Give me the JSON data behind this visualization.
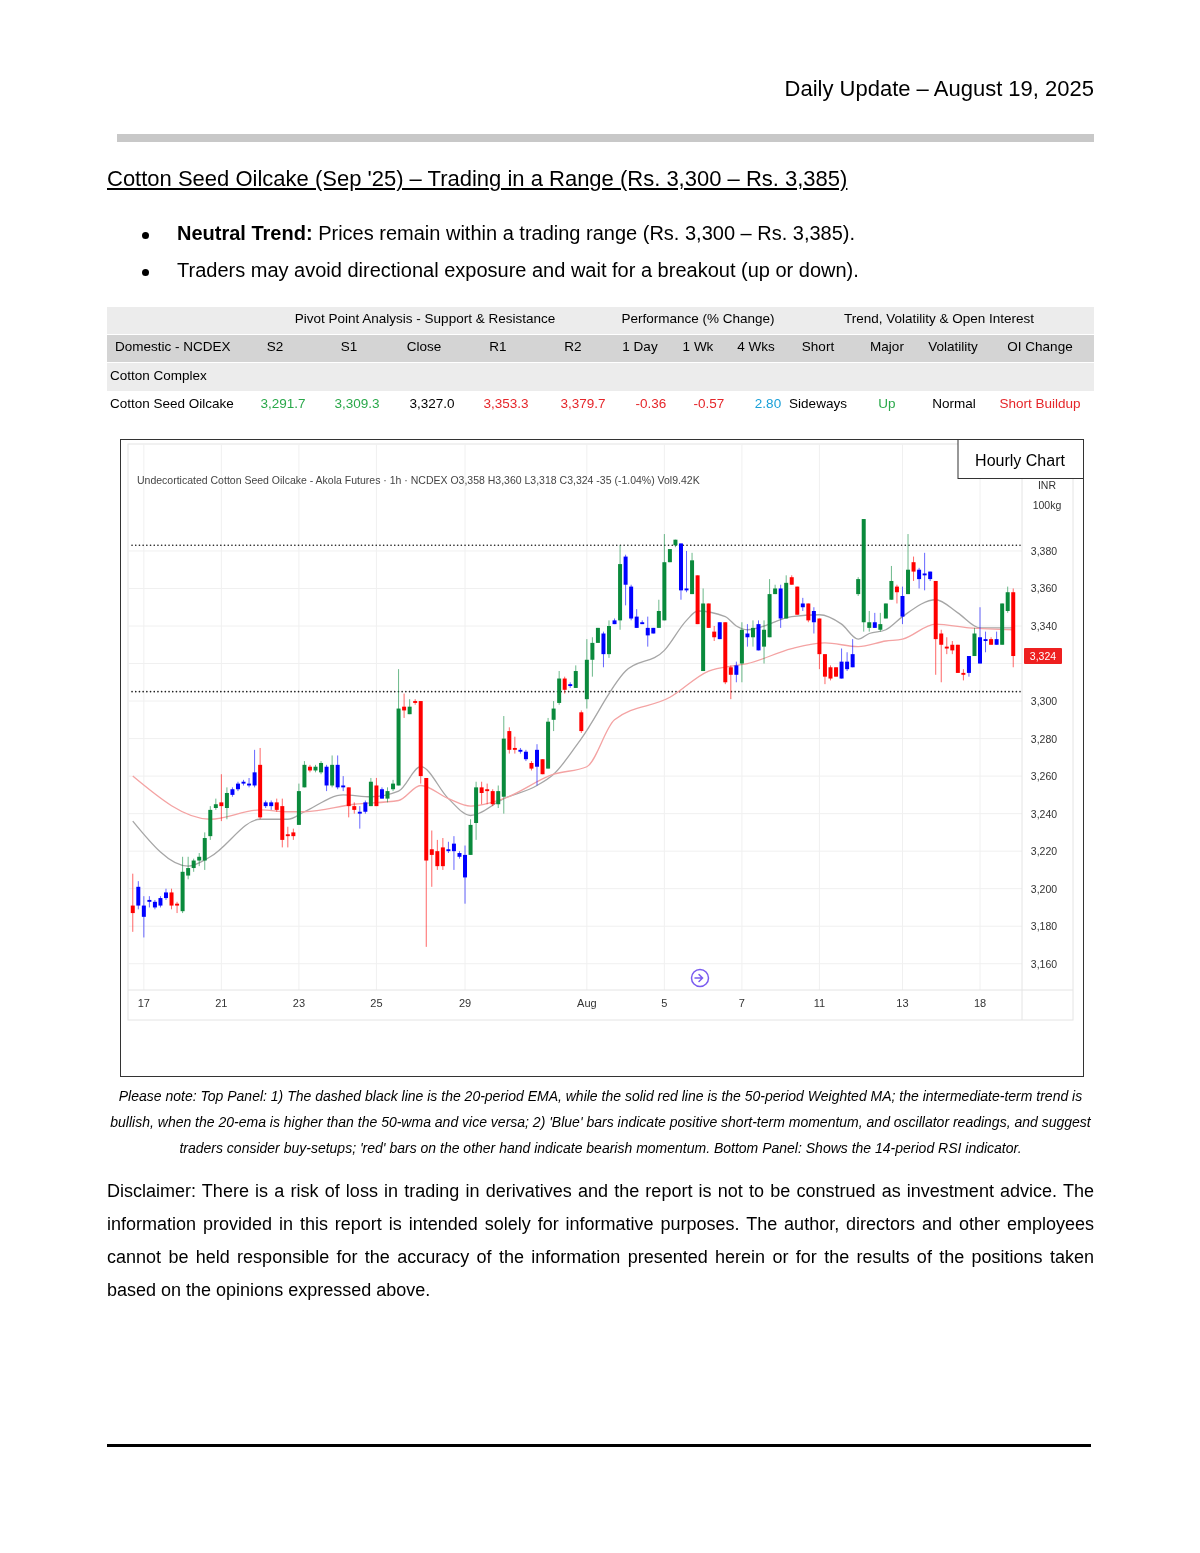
{
  "chart_data": {
    "type": "candlestick",
    "title": "Cotton Seed Oilcake (Sep '25) – Trading in a Range (Rs. 3,300 – Rs. 3,385)",
    "subtitle": "Undecorticated Cotton Seed Oilcake - Akola Futures · 1h · NCDEX  O3,358  H3,360  L3,318  C3,324  -35 (-1.04%)  Vol9.42K",
    "ylabel": "INR 100kg",
    "categories": [
      null,
      null,
      "17",
      null,
      null,
      null,
      null,
      null,
      null,
      null,
      null,
      null,
      null,
      null,
      null,
      null,
      "21",
      null,
      null,
      null,
      null,
      null,
      null,
      null,
      null,
      null,
      null,
      null,
      null,
      null,
      "23",
      null,
      null,
      null,
      null,
      null,
      null,
      null,
      null,
      null,
      null,
      null,
      null,
      null,
      "25",
      null,
      null,
      null,
      null,
      null,
      null,
      null,
      null,
      null,
      null,
      null,
      null,
      null,
      null,
      null,
      "29",
      null,
      null,
      null,
      null,
      null,
      null,
      null,
      null,
      null,
      null,
      null,
      null,
      null,
      null,
      null,
      null,
      null,
      null,
      null,
      null,
      null,
      "Aug",
      null,
      null,
      null,
      null,
      null,
      null,
      null,
      null,
      null,
      null,
      null,
      null,
      null,
      "5",
      null,
      null,
      null,
      null,
      null,
      null,
      null,
      null,
      null,
      null,
      null,
      null,
      null,
      "7",
      null,
      null,
      null,
      null,
      null,
      null,
      null,
      null,
      null,
      null,
      null,
      null,
      null,
      "11",
      null,
      null,
      null,
      null,
      null,
      null,
      null,
      null,
      null,
      null,
      null,
      null,
      null,
      null,
      "13",
      null,
      null,
      null,
      null,
      null,
      null,
      null,
      null,
      null,
      null,
      null,
      null,
      null,
      "18",
      null,
      null,
      null,
      null,
      null,
      null
    ],
    "ohlc": [
      [
        3191,
        3208,
        3177,
        3187
      ],
      [
        3201,
        3204,
        3189,
        3191
      ],
      [
        3191,
        3196,
        3174,
        3185
      ],
      [
        3194,
        3196,
        3190,
        3193
      ],
      [
        3193,
        3194,
        3189,
        3190
      ],
      [
        3195,
        3196,
        3190,
        3191
      ],
      [
        3198,
        3200,
        3194,
        3195
      ],
      [
        3198,
        3200,
        3189,
        3191
      ],
      [
        3192,
        3193,
        3187,
        3191
      ],
      [
        3188,
        3217,
        3187,
        3209
      ],
      [
        3207,
        3217,
        3205,
        3211
      ],
      [
        3211,
        3216,
        3209,
        3215
      ],
      [
        3215,
        3219,
        3212,
        3217
      ],
      [
        3215,
        3230,
        3210,
        3227
      ],
      [
        3228,
        3244,
        3226,
        3242
      ],
      [
        3243,
        3248,
        3242,
        3245
      ],
      [
        3246,
        3261,
        3236,
        3244
      ],
      [
        3243,
        3254,
        3237,
        3251
      ],
      [
        3253,
        3254,
        3249,
        3250
      ],
      [
        3256,
        3257,
        3252,
        3253
      ],
      [
        3257,
        3258,
        3255,
        3256
      ],
      [
        3256,
        3259,
        3254,
        3255
      ],
      [
        3262,
        3274,
        3254,
        3255
      ],
      [
        3266,
        3275,
        3237,
        3238
      ],
      [
        3246,
        3247,
        3243,
        3244
      ],
      [
        3246,
        3247,
        3242,
        3244
      ],
      [
        3246,
        3248,
        3241,
        3242
      ],
      [
        3244,
        3248,
        3222,
        3226
      ],
      [
        3229,
        3233,
        3222,
        3228
      ],
      [
        3230,
        3232,
        3226,
        3228
      ],
      [
        3234,
        3256,
        3234,
        3252
      ],
      [
        3254,
        3268,
        3254,
        3266
      ],
      [
        3265,
        3266,
        3262,
        3263
      ],
      [
        3263,
        3266,
        3262,
        3265
      ],
      [
        3262,
        3268,
        3261,
        3267
      ],
      [
        3265,
        3266,
        3252,
        3255
      ],
      [
        3255,
        3271,
        3254,
        3266
      ],
      [
        3266,
        3271,
        3253,
        3254
      ],
      [
        3255,
        3260,
        3252,
        3254
      ],
      [
        3254,
        3254,
        3238,
        3244
      ],
      [
        3244,
        3246,
        3240,
        3242
      ],
      [
        3241,
        3244,
        3232,
        3240
      ],
      [
        3246,
        3247,
        3240,
        3241
      ],
      [
        3244,
        3259,
        3244,
        3257
      ],
      [
        3255,
        3259,
        3244,
        3244
      ],
      [
        3253,
        3254,
        3248,
        3248
      ],
      [
        3248,
        3254,
        3246,
        3252
      ],
      [
        3253,
        3258,
        3252,
        3256
      ],
      [
        3255,
        3317,
        3255,
        3296
      ],
      [
        3297,
        3304,
        3291,
        3295
      ],
      [
        3293,
        3301,
        3293,
        3297
      ],
      [
        3300,
        3301,
        3298,
        3299
      ],
      [
        3300,
        3300,
        3256,
        3260
      ],
      [
        3259,
        3259,
        3169,
        3215
      ],
      [
        3221,
        3231,
        3201,
        3218
      ],
      [
        3220,
        3226,
        3210,
        3212
      ],
      [
        3222,
        3227,
        3210,
        3212
      ],
      [
        3221,
        3225,
        3219,
        3220
      ],
      [
        3224,
        3228,
        3210,
        3220
      ],
      [
        3219,
        3220,
        3216,
        3217
      ],
      [
        3218,
        3223,
        3192,
        3206
      ],
      [
        3218,
        3237,
        3218,
        3234
      ],
      [
        3235,
        3257,
        3226,
        3254
      ],
      [
        3254,
        3257,
        3245,
        3251
      ],
      [
        3253,
        3256,
        3245,
        3252
      ],
      [
        3252,
        3253,
        3244,
        3245
      ],
      [
        3245,
        3255,
        3243,
        3252
      ],
      [
        3249,
        3292,
        3240,
        3280
      ],
      [
        3284,
        3286,
        3272,
        3274
      ],
      [
        3275,
        3281,
        3272,
        3274
      ],
      [
        3274,
        3275,
        3272,
        3273
      ],
      [
        3273,
        3274,
        3268,
        3269
      ],
      [
        3267,
        3268,
        3263,
        3264
      ],
      [
        3274,
        3277,
        3255,
        3265
      ],
      [
        3269,
        3269,
        3261,
        3261
      ],
      [
        3264,
        3291,
        3264,
        3289
      ],
      [
        3290,
        3300,
        3284,
        3296
      ],
      [
        3299,
        3316,
        3298,
        3312
      ],
      [
        3312,
        3313,
        3304,
        3306
      ],
      [
        3309,
        3310,
        3307,
        3308
      ],
      [
        3307,
        3319,
        3307,
        3316
      ],
      [
        3294,
        3295,
        3283,
        3284
      ],
      [
        3301,
        3333,
        3296,
        3322
      ],
      [
        3322,
        3334,
        3313,
        3331
      ],
      [
        3331,
        3339,
        3331,
        3339
      ],
      [
        3336,
        3337,
        3318,
        3325
      ],
      [
        3325,
        3343,
        3323,
        3340
      ],
      [
        3343,
        3344,
        3341,
        3341
      ],
      [
        3343,
        3383,
        3338,
        3373
      ],
      [
        3377,
        3378,
        3351,
        3362
      ],
      [
        3361,
        3362,
        3343,
        3344
      ],
      [
        3345,
        3349,
        3339,
        3339
      ],
      [
        3342,
        3343,
        3341,
        3341
      ],
      [
        3339,
        3345,
        3329,
        3335
      ],
      [
        3339,
        3339,
        3336,
        3336
      ],
      [
        3339,
        3354,
        3339,
        3348
      ],
      [
        3343,
        3389,
        3343,
        3374
      ],
      [
        3374,
        3381,
        3374,
        3381
      ],
      [
        3383,
        3386,
        3382,
        3386
      ],
      [
        3384,
        3384,
        3354,
        3359
      ],
      [
        3360,
        3380,
        3358,
        3359
      ],
      [
        3357,
        3379,
        3357,
        3375
      ],
      [
        3367,
        3367,
        3341,
        3341
      ],
      [
        3316,
        3360,
        3316,
        3352
      ],
      [
        3352,
        3352,
        3339,
        3339
      ],
      [
        3337,
        3340,
        3332,
        3334
      ],
      [
        3342,
        3342,
        3333,
        3333
      ],
      [
        3342,
        3342,
        3309,
        3310
      ],
      [
        3318,
        3319,
        3301,
        3314
      ],
      [
        3319,
        3321,
        3310,
        3314
      ],
      [
        3320,
        3342,
        3310,
        3338
      ],
      [
        3336,
        3341,
        3329,
        3334
      ],
      [
        3334,
        3343,
        3329,
        3339
      ],
      [
        3341,
        3343,
        3327,
        3327
      ],
      [
        3329,
        3343,
        3320,
        3338
      ],
      [
        3334,
        3365,
        3334,
        3357
      ],
      [
        3357,
        3362,
        3357,
        3360
      ],
      [
        3360,
        3362,
        3339,
        3344
      ],
      [
        3344,
        3367,
        3344,
        3363
      ],
      [
        3366,
        3367,
        3362,
        3362
      ],
      [
        3361,
        3361,
        3346,
        3346
      ],
      [
        3352,
        3355,
        3348,
        3350
      ],
      [
        3352,
        3352,
        3342,
        3343
      ],
      [
        3348,
        3350,
        3336,
        3342
      ],
      [
        3344,
        3344,
        3317,
        3325
      ],
      [
        3325,
        3325,
        3309,
        3313
      ],
      [
        3318,
        3319,
        3311,
        3312
      ],
      [
        3318,
        3318,
        3313,
        3313
      ],
      [
        3321,
        3328,
        3312,
        3312
      ],
      [
        3321,
        3326,
        3316,
        3317
      ],
      [
        3325,
        3333,
        3318,
        3318
      ],
      [
        3357,
        3366,
        3356,
        3365
      ],
      [
        3342,
        3397,
        3337,
        3397
      ],
      [
        3339,
        3348,
        3337,
        3342
      ],
      [
        3342,
        3347,
        3339,
        3339
      ],
      [
        3338,
        3347,
        3337,
        3341
      ],
      [
        3344,
        3352,
        3344,
        3352
      ],
      [
        3354,
        3372,
        3354,
        3364
      ],
      [
        3361,
        3362,
        3352,
        3358
      ],
      [
        3356,
        3361,
        3341,
        3345
      ],
      [
        3357,
        3389,
        3357,
        3370
      ],
      [
        3374,
        3377,
        3364,
        3369
      ],
      [
        3370,
        3371,
        3360,
        3365
      ],
      [
        3368,
        3379,
        3359,
        3367
      ],
      [
        3369,
        3369,
        3364,
        3365
      ],
      [
        3364,
        3364,
        3314,
        3333
      ],
      [
        3336,
        3338,
        3310,
        3330
      ],
      [
        3329,
        3334,
        3325,
        3328
      ],
      [
        3330,
        3332,
        3325,
        3327
      ],
      [
        3330,
        3330,
        3315,
        3315
      ],
      [
        3315,
        3317,
        3311,
        3314
      ],
      [
        3324,
        3324,
        3313,
        3315
      ],
      [
        3324,
        3339,
        3324,
        3336
      ],
      [
        3334,
        3350,
        3320,
        3320
      ],
      [
        3333,
        3337,
        3326,
        3332
      ],
      [
        3333,
        3334,
        3330,
        3330
      ],
      [
        3333,
        3337,
        3330,
        3330
      ],
      [
        3330,
        3352,
        3330,
        3352
      ],
      [
        3348,
        3361,
        3347,
        3358
      ],
      [
        3358,
        3360,
        3318,
        3324
      ]
    ],
    "colors": [
      "#ff0000",
      "#0000ff",
      "#0000ff",
      "#0000ff",
      "#0000ff",
      "#0000ff",
      "#0000ff",
      "#ff0000",
      "#ff0000",
      "#0a8a3c",
      "#0a8a3c",
      "#0a8a3c",
      "#0a8a3c",
      "#0a8a3c",
      "#0a8a3c",
      "#0a8a3c",
      "#ff0000",
      "#0a8a3c",
      "#0000ff",
      "#0000ff",
      "#0000ff",
      "#0000ff",
      "#0000ff",
      "#ff0000",
      "#0000ff",
      "#0000ff",
      "#ff0000",
      "#ff0000",
      "#ff0000",
      "#ff0000",
      "#0a8a3c",
      "#0a8a3c",
      "#ff0000",
      "#0a8a3c",
      "#0a8a3c",
      "#0000ff",
      "#0a8a3c",
      "#0000ff",
      "#0000ff",
      "#ff0000",
      "#ff0000",
      "#0000ff",
      "#0000ff",
      "#0a8a3c",
      "#ff0000",
      "#0000ff",
      "#0a8a3c",
      "#0a8a3c",
      "#0a8a3c",
      "#ff0000",
      "#0a8a3c",
      "#ff0000",
      "#ff0000",
      "#ff0000",
      "#ff0000",
      "#ff0000",
      "#ff0000",
      "#0000ff",
      "#0000ff",
      "#0000ff",
      "#0000ff",
      "#0a8a3c",
      "#0a8a3c",
      "#ff0000",
      "#ff0000",
      "#ff0000",
      "#0a8a3c",
      "#0a8a3c",
      "#ff0000",
      "#ff0000",
      "#0000ff",
      "#0000ff",
      "#ff0000",
      "#0000ff",
      "#ff0000",
      "#0a8a3c",
      "#0a8a3c",
      "#0a8a3c",
      "#ff0000",
      "#0000ff",
      "#0a8a3c",
      "#ff0000",
      "#0a8a3c",
      "#0a8a3c",
      "#0a8a3c",
      "#0000ff",
      "#0a8a3c",
      "#0000ff",
      "#0a8a3c",
      "#0000ff",
      "#0000ff",
      "#0000ff",
      "#0000ff",
      "#0000ff",
      "#0000ff",
      "#0a8a3c",
      "#0a8a3c",
      "#0a8a3c",
      "#0a8a3c",
      "#0000ff",
      "#0000ff",
      "#0a8a3c",
      "#ff0000",
      "#0a8a3c",
      "#ff0000",
      "#ff0000",
      "#0000ff",
      "#ff0000",
      "#ff0000",
      "#0000ff",
      "#0a8a3c",
      "#0000ff",
      "#0a8a3c",
      "#0000ff",
      "#0a8a3c",
      "#0a8a3c",
      "#0a8a3c",
      "#0000ff",
      "#0a8a3c",
      "#ff0000",
      "#ff0000",
      "#0000ff",
      "#ff0000",
      "#0000ff",
      "#ff0000",
      "#ff0000",
      "#ff0000",
      "#ff0000",
      "#0000ff",
      "#0000ff",
      "#0000ff",
      "#0a8a3c",
      "#0a8a3c",
      "#0a8a3c",
      "#0000ff",
      "#0a8a3c",
      "#0a8a3c",
      "#0a8a3c",
      "#ff0000",
      "#0000ff",
      "#0a8a3c",
      "#ff0000",
      "#0000ff",
      "#0000ff",
      "#0000ff",
      "#ff0000",
      "#ff0000",
      "#ff0000",
      "#ff0000",
      "#ff0000",
      "#ff0000",
      "#0000ff",
      "#0a8a3c",
      "#0000ff",
      "#0000ff",
      "#ff0000",
      "#0000ff",
      "#0a8a3c",
      "#0a8a3c",
      "#ff0000"
    ],
    "series": [
      {
        "type": "line",
        "color": "#a6a6a6",
        "values": [
          3236,
          null,
          null,
          null,
          null,
          null,
          null,
          null,
          null,
          null,
          3212,
          null,
          null,
          null,
          3217,
          null,
          null,
          null,
          null,
          null,
          null,
          null,
          null,
          3237,
          null,
          null,
          null,
          null,
          3237,
          null,
          null,
          3241,
          null,
          null,
          null,
          null,
          null,
          null,
          3250,
          null,
          null,
          null,
          null,
          3249,
          null,
          null,
          null,
          null,
          3252,
          null,
          null,
          null,
          3265,
          null,
          null,
          null,
          null,
          3248,
          null,
          null,
          null,
          3239,
          null,
          null,
          null,
          null,
          null,
          3248,
          null,
          null,
          null,
          null,
          null,
          3255,
          null,
          null,
          3261,
          null,
          null,
          null,
          null,
          3280,
          null,
          null,
          null,
          null,
          null,
          null,
          null,
          3316,
          null,
          null,
          null,
          null,
          null,
          null,
          3327,
          null,
          null,
          null,
          3343,
          null,
          3348,
          null,
          null,
          null,
          null,
          3345,
          null,
          3340,
          null,
          3338,
          null,
          null,
          null,
          null,
          null,
          null,
          null,
          3345,
          null,
          null,
          null,
          null,
          3346,
          null,
          null,
          null,
          3341,
          null,
          null,
          3333,
          null,
          3336,
          null,
          null,
          3338,
          null,
          null,
          3345,
          null,
          null,
          null,
          null,
          null,
          3354,
          null,
          null,
          null,
          3347,
          null,
          null,
          null,
          3339,
          null,
          null,
          null,
          null,
          null,
          3339
        ]
      },
      {
        "type": "line",
        "color": "#f4a3a3",
        "values": [
          3260,
          null,
          null,
          null,
          null,
          null,
          null,
          null,
          null,
          null,
          null,
          null,
          null,
          null,
          3237,
          null,
          null,
          null,
          null,
          null,
          null,
          null,
          null,
          3242,
          null,
          null,
          null,
          null,
          3241,
          null,
          null,
          3241,
          null,
          null,
          null,
          null,
          null,
          null,
          null,
          null,
          3245,
          null,
          null,
          null,
          null,
          null,
          null,
          null,
          3247,
          null,
          null,
          null,
          3255,
          null,
          null,
          null,
          null,
          3248,
          null,
          null,
          null,
          3244,
          null,
          null,
          null,
          null,
          null,
          3248,
          null,
          null,
          null,
          null,
          null,
          null,
          null,
          null,
          3261,
          null,
          null,
          null,
          null,
          null,
          3265,
          null,
          null,
          null,
          null,
          3290,
          null,
          null,
          null,
          null,
          null,
          null,
          null,
          null,
          null,
          3302,
          null,
          null,
          null,
          null,
          null,
          null,
          3316,
          null,
          null,
          null,
          null,
          3319,
          null,
          3320,
          null,
          null,
          null,
          null,
          null,
          null,
          null,
          3328,
          null,
          null,
          null,
          null,
          null,
          3331,
          null,
          null,
          null,
          null,
          null,
          3329,
          null,
          null,
          null,
          null,
          3332,
          null,
          null,
          3333,
          null,
          null,
          null,
          null,
          null,
          3341,
          null,
          null,
          null,
          null,
          null,
          3339,
          null,
          null,
          null,
          null,
          null,
          null,
          null,
          3338
        ]
      }
    ],
    "ylim": [
      3146,
      3437
    ],
    "yticks": [
      {
        "value": 3160,
        "label": "3,160"
      },
      {
        "value": 3180,
        "label": "3,180"
      },
      {
        "value": 3200,
        "label": "3,200"
      },
      {
        "value": 3220,
        "label": "3,220"
      },
      {
        "value": 3240,
        "label": "3,240"
      },
      {
        "value": 3260,
        "label": "3,260"
      },
      {
        "value": 3280,
        "label": "3,280"
      },
      {
        "value": 3300,
        "label": "3,300"
      },
      {
        "value": 3320,
        "label": null
      },
      {
        "value": 3340,
        "label": "3,340"
      },
      {
        "value": 3360,
        "label": "3,360"
      },
      {
        "value": 3380,
        "label": "3,380"
      }
    ],
    "grid": true,
    "ref_lines": [
      {
        "axis": "y",
        "value": 3383,
        "color": "#222222",
        "line_style": "dotted"
      },
      {
        "axis": "y",
        "value": 3305,
        "color": "#222222",
        "line_style": "dotted"
      }
    ],
    "annotations": [
      "Daily Update – August 19, 2025",
      "Neutral Trend:",
      "Prices remain within a trading range (Rs. 3,300 – Rs. 3,385).",
      "Traders may avoid directional exposure and wait for a breakout (up or down).",
      "Pivot Point Analysis - Support & Resistance",
      "Performance (% Change)",
      "Trend, Volatility & Open Interest",
      "Domestic - NCDEX",
      "S2",
      "S1",
      "Close",
      "R1",
      "R2",
      "1 Day",
      "1 Wk",
      "4 Wks",
      "Short",
      "Major",
      "Volatility",
      "OI Change",
      "Cotton Complex",
      "Cotton Seed Oilcake",
      "3,291.7",
      "3,309.3",
      "3,327.0",
      "3,353.3",
      "3,379.7",
      "-0.36",
      "-0.57",
      "2.80",
      "Sideways",
      "Up",
      "Normal",
      "Short Buildup",
      "Hourly Chart",
      {
        "text": "3,324",
        "y": 3324
      },
      "Please note: Top Panel: 1) The dashed black line is the 20-period EMA, while the solid red line is the 50-period Weighted MA; the intermediate-term trend is bullish, when the 20-ema is higher than the 50-wma and vice versa; 2)  'Blue'  bars indicate positive short-term momentum, and oscillator readings, and suggest traders consider buy-setups;  'red'  bars on the other hand indicate bearish momentum. Bottom Panel: Shows the 14-period RSI indicator.",
      "Disclaimer: There is a risk of loss in trading in derivatives and the report is not to be construed as investment advice. The information provided in this report is intended solely for informative purposes. The author, directors and other employees cannot be held responsible for the accuracy of the information presented herein or for the results of the positions taken based on the opinions expressed above."
    ]
  }
}
